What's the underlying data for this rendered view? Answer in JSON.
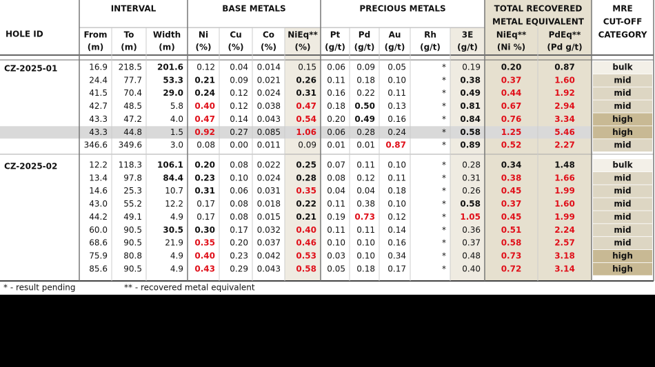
{
  "header": {
    "hole_id": "HOLE ID",
    "groups": [
      [
        "INTERVAL"
      ],
      [
        "BASE METALS"
      ],
      [
        "PRECIOUS METALS"
      ],
      [
        "TOTAL RECOVERED",
        "METAL EQUIVALENT"
      ],
      [
        "MRE",
        "CUT-OFF",
        "CATEGORY"
      ]
    ],
    "columns": [
      [
        "From",
        "(m)"
      ],
      [
        "To",
        "(m)"
      ],
      [
        "Width",
        "(m)"
      ],
      [
        "Ni",
        "(%)"
      ],
      [
        "Cu",
        "(%)"
      ],
      [
        "Co",
        "(%)"
      ],
      [
        "NiEq**",
        "(%)"
      ],
      [
        "Pt",
        "(g/t)"
      ],
      [
        "Pd",
        "(g/t)"
      ],
      [
        "Au",
        "(g/t)"
      ],
      [
        "Rh",
        "(g/t)"
      ],
      [
        "3E",
        "(g/t)"
      ],
      [
        "NiEq**",
        "(Ni %)"
      ],
      [
        "PdEq**",
        "(Pd g/t)"
      ]
    ]
  },
  "holes": [
    {
      "id": "CZ-2025-01",
      "rows": [
        [
          "16.9",
          "218.5",
          "201.6",
          "0.12",
          "0.04",
          "0.014",
          "0.15",
          "0.06",
          "0.09",
          "0.05",
          "*",
          "0.19",
          "0.20",
          "0.87",
          "bulk"
        ],
        [
          "24.4",
          "77.7",
          "53.3",
          "0.21",
          "0.09",
          "0.021",
          "0.26",
          "0.11",
          "0.18",
          "0.10",
          "*",
          "0.38",
          "0.37",
          "1.60",
          "mid"
        ],
        [
          "41.5",
          "70.4",
          "29.0",
          "0.24",
          "0.12",
          "0.024",
          "0.31",
          "0.16",
          "0.22",
          "0.11",
          "*",
          "0.49",
          "0.44",
          "1.92",
          "mid"
        ],
        [
          "42.7",
          "48.5",
          "5.8",
          "0.40",
          "0.12",
          "0.038",
          "0.47",
          "0.18",
          "0.50",
          "0.13",
          "*",
          "0.81",
          "0.67",
          "2.94",
          "mid"
        ],
        [
          "43.3",
          "47.2",
          "4.0",
          "0.47",
          "0.14",
          "0.043",
          "0.54",
          "0.20",
          "0.49",
          "0.16",
          "*",
          "0.84",
          "0.76",
          "3.34",
          "high"
        ],
        [
          "43.3",
          "44.8",
          "1.5",
          "0.92",
          "0.27",
          "0.085",
          "1.06",
          "0.06",
          "0.28",
          "0.24",
          "*",
          "0.58",
          "1.25",
          "5.46",
          "high"
        ],
        [
          "346.6",
          "349.6",
          "3.0",
          "0.08",
          "0.00",
          "0.011",
          "0.09",
          "0.01",
          "0.01",
          "0.87",
          "*",
          "0.89",
          "0.52",
          "2.27",
          "mid"
        ]
      ]
    },
    {
      "id": "CZ-2025-02",
      "rows": [
        [
          "12.2",
          "118.3",
          "106.1",
          "0.20",
          "0.08",
          "0.022",
          "0.25",
          "0.07",
          "0.11",
          "0.10",
          "*",
          "0.28",
          "0.34",
          "1.48",
          "bulk"
        ],
        [
          "13.4",
          "97.8",
          "84.4",
          "0.23",
          "0.10",
          "0.024",
          "0.28",
          "0.08",
          "0.12",
          "0.11",
          "*",
          "0.31",
          "0.38",
          "1.66",
          "mid"
        ],
        [
          "14.6",
          "25.3",
          "10.7",
          "0.31",
          "0.06",
          "0.031",
          "0.35",
          "0.04",
          "0.04",
          "0.18",
          "*",
          "0.26",
          "0.45",
          "1.99",
          "mid"
        ],
        [
          "43.0",
          "55.2",
          "12.2",
          "0.17",
          "0.08",
          "0.018",
          "0.22",
          "0.11",
          "0.38",
          "0.10",
          "*",
          "0.58",
          "0.37",
          "1.60",
          "mid"
        ],
        [
          "44.2",
          "49.1",
          "4.9",
          "0.17",
          "0.08",
          "0.015",
          "0.21",
          "0.19",
          "0.73",
          "0.12",
          "*",
          "1.05",
          "0.45",
          "1.99",
          "mid"
        ],
        [
          "60.0",
          "90.5",
          "30.5",
          "0.30",
          "0.17",
          "0.032",
          "0.40",
          "0.11",
          "0.11",
          "0.14",
          "*",
          "0.36",
          "0.51",
          "2.24",
          "mid"
        ],
        [
          "68.6",
          "90.5",
          "21.9",
          "0.35",
          "0.20",
          "0.037",
          "0.46",
          "0.10",
          "0.10",
          "0.16",
          "*",
          "0.37",
          "0.58",
          "2.57",
          "mid"
        ],
        [
          "75.9",
          "80.8",
          "4.9",
          "0.40",
          "0.23",
          "0.042",
          "0.53",
          "0.03",
          "0.10",
          "0.34",
          "*",
          "0.48",
          "0.73",
          "3.18",
          "high"
        ],
        [
          "85.6",
          "90.5",
          "4.9",
          "0.43",
          "0.29",
          "0.043",
          "0.58",
          "0.05",
          "0.18",
          "0.17",
          "*",
          "0.40",
          "0.72",
          "3.14",
          "high"
        ]
      ]
    }
  ],
  "footnotes": [
    "* - result pending",
    "** - recovered metal equivalent"
  ]
}
